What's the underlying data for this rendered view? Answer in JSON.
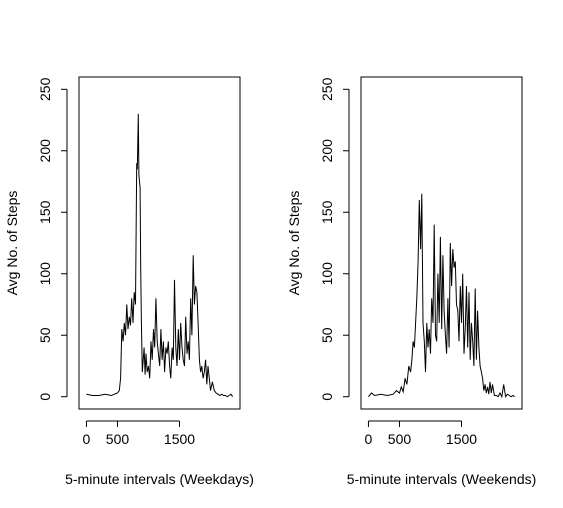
{
  "chart_data": [
    {
      "type": "line",
      "title": "",
      "xlabel": "5-minute intervals (Weekdays)",
      "ylabel": "Avg No. of Steps",
      "xticks": [
        0,
        500,
        1500
      ],
      "yticks": [
        0,
        50,
        100,
        150,
        200,
        250
      ],
      "xlim": [
        -120,
        2475
      ],
      "ylim": [
        -10,
        260
      ],
      "grid": false,
      "legend": "none",
      "line_color": "#000000",
      "series": [
        {
          "x": [
            0,
            100,
            200,
            300,
            400,
            450,
            500,
            530,
            550,
            570,
            590,
            610,
            630,
            650,
            670,
            690,
            710,
            730,
            750,
            770,
            790,
            810,
            820,
            835,
            845,
            855,
            865,
            875,
            885,
            900,
            915,
            930,
            945,
            960,
            980,
            1000,
            1020,
            1040,
            1060,
            1080,
            1100,
            1120,
            1140,
            1160,
            1180,
            1200,
            1220,
            1240,
            1260,
            1280,
            1300,
            1320,
            1340,
            1360,
            1380,
            1400,
            1420,
            1440,
            1460,
            1480,
            1500,
            1520,
            1540,
            1560,
            1580,
            1600,
            1620,
            1640,
            1660,
            1680,
            1700,
            1720,
            1740,
            1760,
            1780,
            1800,
            1820,
            1840,
            1860,
            1880,
            1900,
            1920,
            1940,
            1960,
            1980,
            2000,
            2030,
            2060,
            2090,
            2120,
            2150,
            2180,
            2210,
            2240,
            2270,
            2300,
            2330,
            2355
          ],
          "y": [
            2,
            1,
            1,
            2,
            1,
            2,
            3,
            5,
            15,
            55,
            45,
            60,
            50,
            75,
            55,
            65,
            58,
            80,
            60,
            85,
            75,
            190,
            185,
            230,
            180,
            175,
            170,
            105,
            60,
            20,
            30,
            40,
            18,
            35,
            20,
            25,
            15,
            45,
            30,
            55,
            40,
            80,
            45,
            35,
            25,
            55,
            30,
            45,
            20,
            40,
            35,
            45,
            25,
            15,
            40,
            30,
            95,
            40,
            25,
            55,
            30,
            60,
            40,
            30,
            25,
            65,
            35,
            45,
            30,
            80,
            50,
            115,
            75,
            90,
            85,
            60,
            30,
            20,
            25,
            15,
            20,
            30,
            10,
            25,
            15,
            5,
            12,
            5,
            3,
            2,
            1,
            2,
            1,
            1,
            0,
            1,
            2,
            0
          ]
        }
      ]
    },
    {
      "type": "line",
      "title": "",
      "xlabel": "5-minute intervals (Weekends)",
      "ylabel": "Avg No. of Steps",
      "xticks": [
        0,
        500,
        1500
      ],
      "yticks": [
        0,
        50,
        100,
        150,
        200,
        250
      ],
      "xlim": [
        -120,
        2475
      ],
      "ylim": [
        -10,
        260
      ],
      "grid": false,
      "legend": "none",
      "line_color": "#000000",
      "series": [
        {
          "x": [
            0,
            50,
            100,
            200,
            300,
            400,
            450,
            500,
            530,
            560,
            590,
            620,
            650,
            680,
            700,
            720,
            740,
            760,
            780,
            800,
            820,
            840,
            860,
            880,
            900,
            920,
            940,
            960,
            980,
            1000,
            1020,
            1040,
            1060,
            1080,
            1100,
            1120,
            1140,
            1160,
            1180,
            1200,
            1220,
            1240,
            1260,
            1280,
            1300,
            1320,
            1340,
            1360,
            1380,
            1400,
            1420,
            1440,
            1460,
            1480,
            1500,
            1520,
            1540,
            1560,
            1580,
            1600,
            1620,
            1640,
            1660,
            1680,
            1700,
            1720,
            1740,
            1760,
            1780,
            1800,
            1820,
            1840,
            1860,
            1880,
            1900,
            1920,
            1940,
            1960,
            1980,
            2000,
            2030,
            2060,
            2090,
            2120,
            2150,
            2180,
            2210,
            2240,
            2270,
            2300,
            2330,
            2355
          ],
          "y": [
            0,
            3,
            1,
            2,
            1,
            2,
            5,
            3,
            8,
            4,
            15,
            10,
            25,
            20,
            30,
            45,
            40,
            60,
            80,
            110,
            160,
            120,
            165,
            60,
            45,
            20,
            60,
            40,
            55,
            35,
            80,
            60,
            140,
            50,
            45,
            100,
            60,
            130,
            55,
            115,
            70,
            50,
            35,
            80,
            40,
            125,
            90,
            120,
            105,
            110,
            75,
            70,
            45,
            90,
            60,
            100,
            35,
            55,
            90,
            40,
            85,
            30,
            60,
            45,
            25,
            88,
            30,
            70,
            40,
            25,
            20,
            15,
            5,
            10,
            3,
            8,
            2,
            12,
            3,
            10,
            1,
            1,
            0,
            3,
            0,
            10,
            0,
            2,
            1,
            0,
            1,
            0
          ]
        }
      ]
    }
  ]
}
